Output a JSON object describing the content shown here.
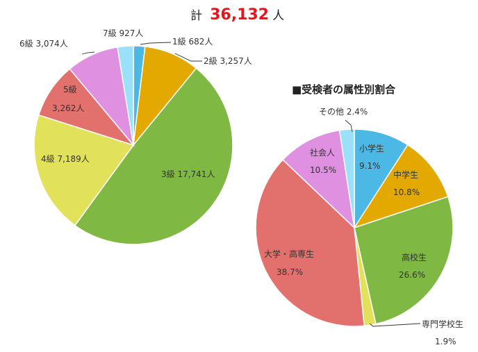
{
  "total": {
    "prefix": "計",
    "value": "36,132",
    "suffix": "人"
  },
  "colors": {
    "green": "#7fb843",
    "yellow": "#e2e25a",
    "red": "#e2706c",
    "pink": "#e090e0",
    "lightblue": "#99e0f8",
    "blue": "#4cb8e6",
    "orange": "#e3a900",
    "total_red": "#e8141b"
  },
  "chart_data": [
    {
      "type": "pie",
      "title": "",
      "slices": [
        {
          "label": "1級 682人",
          "category": "1級",
          "value": 682,
          "color": "#4cb8e6"
        },
        {
          "label": "2級 3,257人",
          "category": "2級",
          "value": 3257,
          "color": "#e3a900"
        },
        {
          "label": "3級 17,741人",
          "category": "3級",
          "value": 17741,
          "color": "#7fb843"
        },
        {
          "label": "4級 7,189人",
          "category": "4級",
          "value": 7189,
          "color": "#e2e25a"
        },
        {
          "label_line1": "5級",
          "label_line2": "3,262人",
          "category": "5級",
          "value": 3262,
          "color": "#e2706c"
        },
        {
          "label": "6級 3,074人",
          "category": "6級",
          "value": 3074,
          "color": "#e090e0"
        },
        {
          "label": "7級 927人",
          "category": "7級",
          "value": 927,
          "color": "#99e0f8"
        }
      ]
    },
    {
      "type": "pie",
      "title": "■受検者の属性別割合",
      "slices": [
        {
          "label_line1": "小学生",
          "label_line2": "9.1%",
          "category": "小学生",
          "value": 9.1,
          "color": "#4cb8e6"
        },
        {
          "label_line1": "中学生",
          "label_line2": "10.8%",
          "category": "中学生",
          "value": 10.8,
          "color": "#e3a900"
        },
        {
          "label_line1": "高校生",
          "label_line2": "26.6%",
          "category": "高校生",
          "value": 26.6,
          "color": "#7fb843"
        },
        {
          "label_line1": "専門学校生",
          "label_line2": "1.9%",
          "category": "専門学校生",
          "value": 1.9,
          "color": "#e2e25a"
        },
        {
          "label_line1": "大学・高専生",
          "label_line2": "38.7%",
          "category": "大学・高専生",
          "value": 38.7,
          "color": "#e2706c"
        },
        {
          "label_line1": "社会人",
          "label_line2": "10.5%",
          "category": "社会人",
          "value": 10.5,
          "color": "#e090e0"
        },
        {
          "label": "その他 2.4%",
          "category": "その他",
          "value": 2.4,
          "color": "#99e0f8"
        }
      ]
    }
  ]
}
